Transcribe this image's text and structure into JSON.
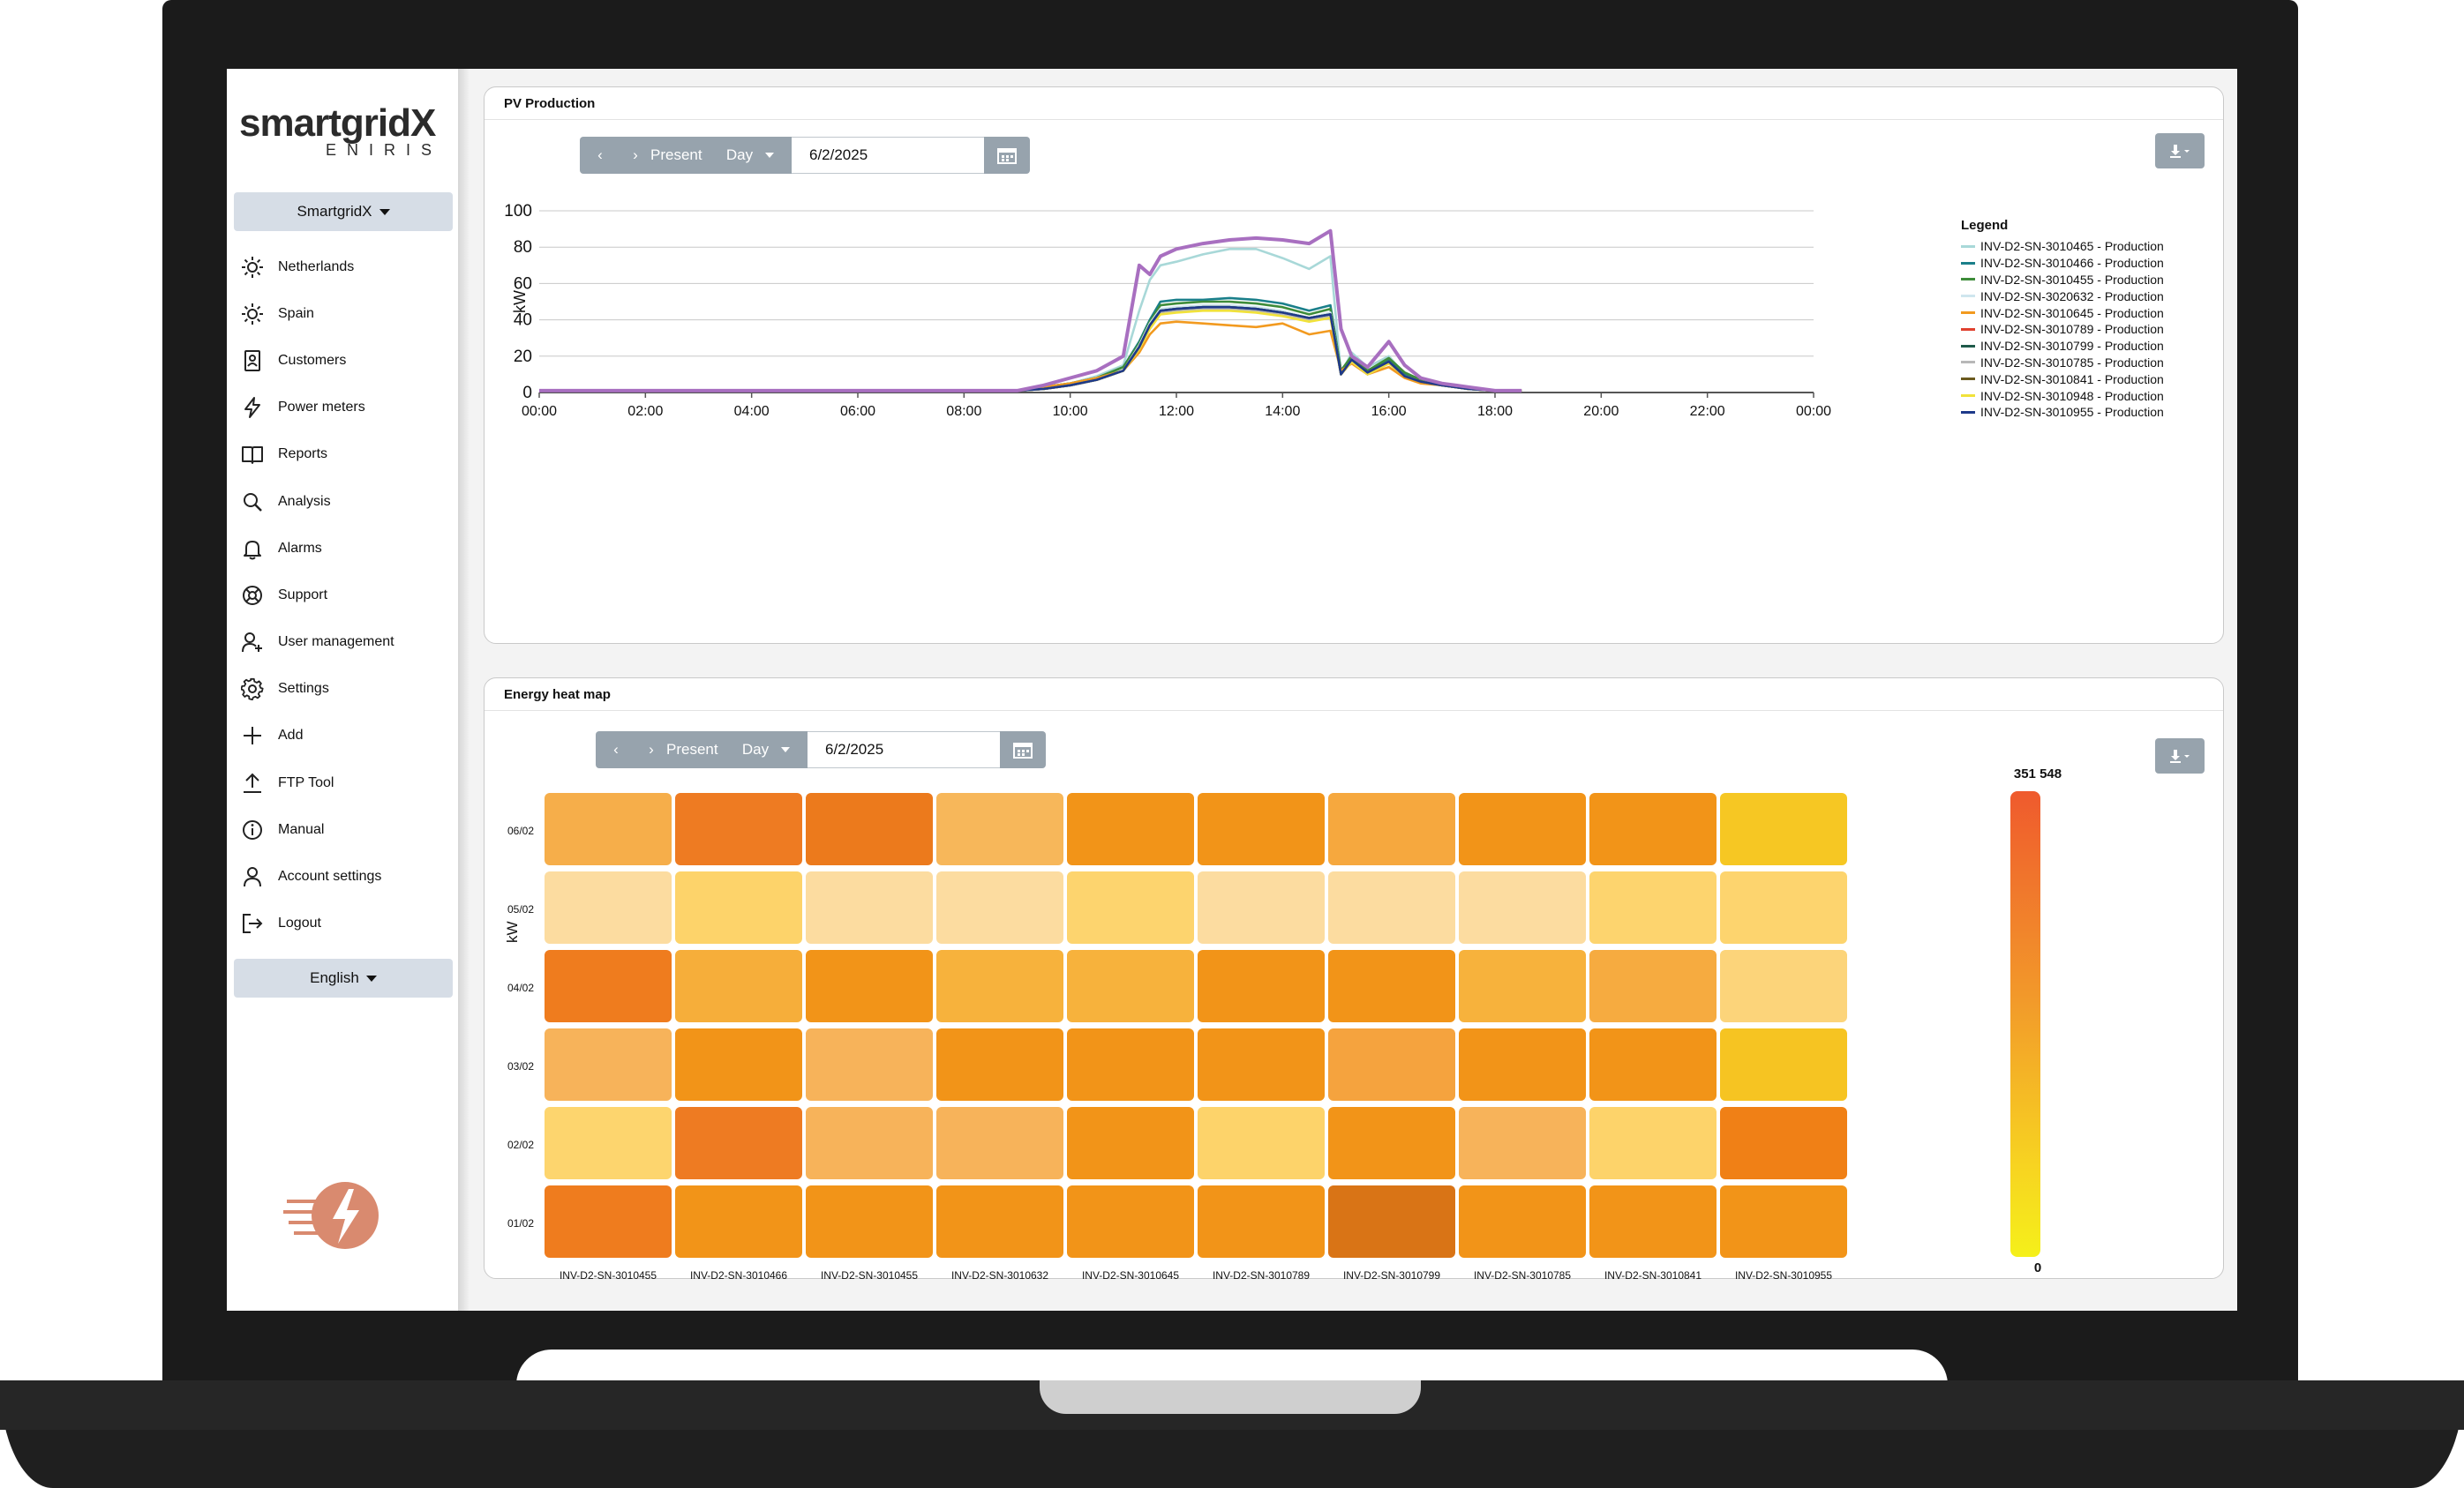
{
  "brand": {
    "name": "smartgridX",
    "sub": "ENIRIS"
  },
  "org_selector": {
    "label": "SmartgridX"
  },
  "nav": [
    {
      "label": "Netherlands",
      "icon": "sun-icon"
    },
    {
      "label": "Spain",
      "icon": "sun-icon"
    },
    {
      "label": "Customers",
      "icon": "customer-card-icon"
    },
    {
      "label": "Power meters",
      "icon": "lightning-icon"
    },
    {
      "label": "Reports",
      "icon": "book-icon"
    },
    {
      "label": "Analysis",
      "icon": "search-icon"
    },
    {
      "label": "Alarms",
      "icon": "bell-icon"
    },
    {
      "label": "Support",
      "icon": "lifebuoy-icon"
    },
    {
      "label": "User management",
      "icon": "user-plus-icon"
    },
    {
      "label": "Settings",
      "icon": "gear-icon"
    },
    {
      "label": "Add",
      "icon": "plus-icon"
    },
    {
      "label": "FTP Tool",
      "icon": "upload-icon"
    },
    {
      "label": "Manual",
      "icon": "info-icon"
    },
    {
      "label": "Account settings",
      "icon": "user-icon"
    },
    {
      "label": "Logout",
      "icon": "logout-icon"
    }
  ],
  "language": {
    "label": "English"
  },
  "pv_panel": {
    "title": "PV Production",
    "toolbar": {
      "prev": "‹",
      "next": "›",
      "present": "Present",
      "period": "Day",
      "date": "6/2/2025"
    },
    "legend_title": "Legend"
  },
  "heatmap_panel": {
    "title": "Energy heat map",
    "toolbar": {
      "prev": "‹",
      "next": "›",
      "present": "Present",
      "period": "Day",
      "date": "6/2/2025"
    },
    "colorbar_max": "351 548",
    "colorbar_min": "0"
  },
  "colors": {
    "accent": "#97a3ad",
    "selector_bg": "#d6dde6"
  },
  "chart_data": [
    {
      "type": "line",
      "title": "PV Production",
      "xlabel": "",
      "ylabel": "kW",
      "ylim": [
        0,
        100
      ],
      "yticks": [
        "0",
        "20",
        "40",
        "60",
        "80",
        "100"
      ],
      "xticks": [
        "00:00",
        "02:00",
        "04:00",
        "06:00",
        "08:00",
        "10:00",
        "12:00",
        "14:00",
        "16:00",
        "18:00",
        "20:00",
        "22:00",
        "00:00"
      ],
      "x_hours": [
        0,
        8,
        9,
        9.5,
        10,
        10.5,
        11,
        11.3,
        11.5,
        11.7,
        12,
        12.5,
        13,
        13.5,
        14,
        14.5,
        14.9,
        15.1,
        15.3,
        15.6,
        16,
        16.3,
        16.6,
        17,
        17.5,
        18,
        18.5
      ],
      "legend_placement": "right",
      "grid": true,
      "series": [
        {
          "name": "INV-D2-SN-3010465 - Production",
          "color": "#a8d8d8",
          "values": [
            1,
            1,
            1,
            3,
            5,
            9,
            15,
            45,
            62,
            70,
            72,
            76,
            79,
            79,
            74,
            68,
            75,
            10,
            22,
            14,
            20,
            10,
            6,
            5,
            3,
            1,
            1
          ]
        },
        {
          "name": "INV-D2-SN-3010466 - Production",
          "color": "#1a7f8a",
          "values": [
            1,
            1,
            1,
            3,
            5,
            8,
            14,
            28,
            40,
            50,
            51,
            51,
            52,
            51,
            49,
            45,
            48,
            12,
            20,
            12,
            18,
            10,
            7,
            5,
            3,
            1,
            1
          ]
        },
        {
          "name": "INV-D2-SN-3010455 - Production",
          "color": "#3e8c3a",
          "values": [
            1,
            1,
            1,
            3,
            5,
            8,
            14,
            27,
            39,
            48,
            49,
            50,
            50,
            49,
            47,
            43,
            46,
            12,
            20,
            12,
            19,
            11,
            7,
            5,
            3,
            1,
            1
          ]
        },
        {
          "name": "INV-D2-SN-3020632 - Production",
          "color": "#cfe6ee",
          "values": [
            1,
            1,
            1,
            2,
            4,
            7,
            12,
            26,
            38,
            46,
            47,
            48,
            48,
            47,
            45,
            41,
            44,
            10,
            18,
            11,
            17,
            9,
            6,
            4,
            2,
            1,
            1
          ]
        },
        {
          "name": "INV-D2-SN-3010645 - Production",
          "color": "#f29a1f",
          "values": [
            1,
            1,
            1,
            3,
            5,
            8,
            12,
            22,
            32,
            38,
            39,
            38,
            37,
            36,
            38,
            32,
            34,
            12,
            16,
            10,
            14,
            8,
            5,
            4,
            2,
            1,
            1
          ]
        },
        {
          "name": "INV-D2-SN-3010789 - Production",
          "color": "#e0412f",
          "values": [
            1,
            1,
            1,
            2,
            4,
            7,
            12,
            25,
            36,
            44,
            45,
            46,
            46,
            45,
            43,
            40,
            42,
            10,
            17,
            10,
            16,
            9,
            6,
            4,
            2,
            1,
            1
          ]
        },
        {
          "name": "INV-D2-SN-3010799 - Production",
          "color": "#1f5a4a",
          "values": [
            1,
            1,
            1,
            2,
            4,
            7,
            12,
            25,
            37,
            45,
            46,
            47,
            47,
            46,
            44,
            41,
            43,
            10,
            18,
            11,
            17,
            9,
            6,
            4,
            2,
            1,
            1
          ]
        },
        {
          "name": "INV-D2-SN-3010785 - Production",
          "color": "#b8b8b8",
          "values": [
            1,
            1,
            1,
            2,
            4,
            7,
            12,
            24,
            36,
            44,
            45,
            46,
            46,
            45,
            43,
            40,
            42,
            10,
            17,
            10,
            16,
            9,
            6,
            4,
            2,
            1,
            1
          ]
        },
        {
          "name": "INV-D2-SN-3010841 - Production",
          "color": "#6b5a1f",
          "values": [
            1,
            1,
            1,
            2,
            4,
            7,
            12,
            25,
            37,
            45,
            46,
            47,
            47,
            46,
            44,
            41,
            43,
            10,
            18,
            11,
            17,
            9,
            6,
            4,
            2,
            1,
            1
          ]
        },
        {
          "name": "INV-D2-SN-3010948 - Production",
          "color": "#f1e23a",
          "values": [
            1,
            1,
            1,
            2,
            4,
            7,
            12,
            24,
            35,
            43,
            44,
            45,
            45,
            44,
            42,
            39,
            41,
            10,
            17,
            10,
            16,
            9,
            6,
            4,
            2,
            1,
            1
          ]
        },
        {
          "name": "INV-D2-SN-3010955 - Production",
          "color": "#1e3a8a",
          "values": [
            1,
            1,
            1,
            2,
            4,
            7,
            12,
            25,
            37,
            45,
            46,
            47,
            47,
            46,
            44,
            41,
            43,
            10,
            18,
            11,
            17,
            9,
            6,
            4,
            2,
            1,
            1
          ]
        },
        {
          "name": "",
          "color": "#a86fc0",
          "values": [
            1,
            1,
            1,
            4,
            8,
            12,
            20,
            70,
            65,
            75,
            79,
            82,
            84,
            85,
            84,
            82,
            89,
            35,
            20,
            14,
            28,
            15,
            8,
            5,
            3,
            1,
            1
          ]
        }
      ]
    },
    {
      "type": "heatmap",
      "title": "Energy heat map",
      "ylabel": "kW",
      "x_categories": [
        "INV-D2-SN-3010455",
        "INV-D2-SN-3010466",
        "INV-D2-SN-3010455",
        "INV-D2-SN-3010632",
        "INV-D2-SN-3010645",
        "INV-D2-SN-3010789",
        "INV-D2-SN-3010799",
        "INV-D2-SN-3010785",
        "INV-D2-SN-3010841",
        "INV-D2-SN-3010955"
      ],
      "y_categories": [
        "06/02",
        "05/02",
        "04/02",
        "03/02",
        "02/02",
        "01/02"
      ],
      "value_range": [
        0,
        351548
      ],
      "colors": [
        [
          "#f6ae4a",
          "#ee7b22",
          "#ec7a1c",
          "#f7b75a",
          "#f29418",
          "#f29418",
          "#f6a83e",
          "#f29418",
          "#f29418",
          "#f6c723"
        ],
        [
          "#fcdca0",
          "#fdd36a",
          "#fcdca0",
          "#fcdca0",
          "#fdd46e",
          "#fcdca0",
          "#fcdca0",
          "#fcdca0",
          "#fdd46e",
          "#fdd46e"
        ],
        [
          "#ef7c1e",
          "#f6ae3a",
          "#f29418",
          "#f7b23c",
          "#f7b23c",
          "#f29418",
          "#f29418",
          "#f7b23c",
          "#f6ab40",
          "#fcd47a"
        ],
        [
          "#f7b35a",
          "#f29418",
          "#f7b35a",
          "#f29418",
          "#f29418",
          "#f29418",
          "#f5a33e",
          "#f29418",
          "#f29418",
          "#f6c422"
        ],
        [
          "#fdd56e",
          "#ee7b22",
          "#f7b35a",
          "#f7b35a",
          "#f29418",
          "#fdd36a",
          "#f29418",
          "#f7b35a",
          "#fdd36a",
          "#f08016"
        ],
        [
          "#ef7c1e",
          "#f29418",
          "#f29418",
          "#f29418",
          "#f29418",
          "#f29418",
          "#d97416",
          "#f29418",
          "#f29418",
          "#f29418"
        ]
      ]
    }
  ]
}
